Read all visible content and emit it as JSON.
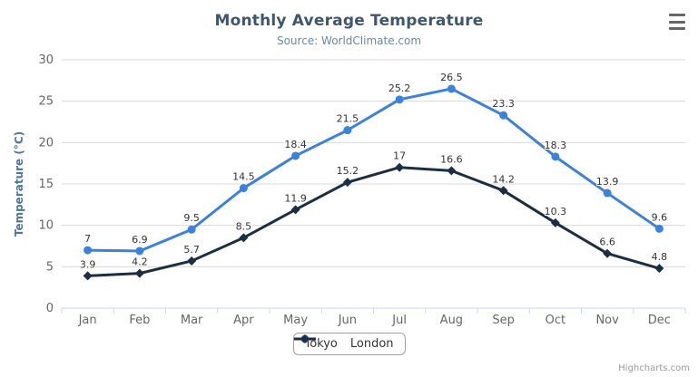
{
  "header": {
    "title": "Monthly Average Temperature",
    "subtitle": "Source: WorldClimate.com"
  },
  "credits": "Highcharts.com",
  "colors": {
    "title": "#3e576f",
    "subtitle": "#6d869f",
    "axis_title": "#4d759e",
    "tick_label": "#666666",
    "gridline": "#d8d8d8",
    "axis_line": "#ccd6eb",
    "data_label": "#333333",
    "legend_border": "#a0a0a0",
    "menu_icon": "#666666",
    "credits": "#999999"
  },
  "chart_data": {
    "type": "line",
    "title": "Monthly Average Temperature",
    "subtitle": "Source: WorldClimate.com",
    "categories": [
      "Jan",
      "Feb",
      "Mar",
      "Apr",
      "May",
      "Jun",
      "Jul",
      "Aug",
      "Sep",
      "Oct",
      "Nov",
      "Dec"
    ],
    "series": [
      {
        "name": "Tokyo",
        "color": "#3b82dd",
        "marker": "circle",
        "values": [
          7,
          6.9,
          9.5,
          14.5,
          18.4,
          21.5,
          25.2,
          26.5,
          23.3,
          18.3,
          13.9,
          9.6
        ]
      },
      {
        "name": "London",
        "color": "#1c2e42",
        "marker": "diamond",
        "values": [
          3.9,
          4.2,
          5.7,
          8.5,
          11.9,
          15.2,
          17,
          16.6,
          14.2,
          10.3,
          6.6,
          4.8
        ]
      }
    ],
    "xlabel": "",
    "ylabel": "Temperature (°C)",
    "ylim": [
      0,
      30
    ],
    "yticks": [
      0,
      5,
      10,
      15,
      20,
      25,
      30
    ],
    "grid": true,
    "legend_position": "bottom",
    "data_labels": true
  }
}
